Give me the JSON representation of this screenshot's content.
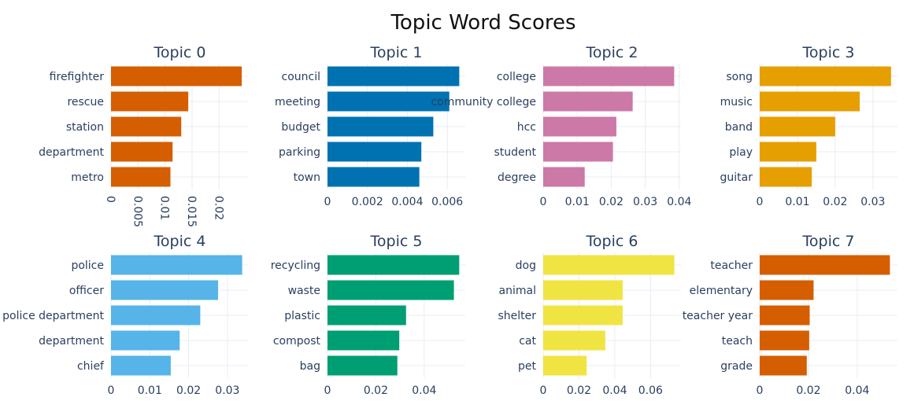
{
  "title": "Topic Word Scores",
  "chart_data": [
    {
      "type": "bar",
      "orientation": "horizontal",
      "title": "Topic 0",
      "color": "#d55e00",
      "categories": [
        "firefighter",
        "rescue",
        "station",
        "department",
        "metro"
      ],
      "values": [
        0.0242,
        0.0143,
        0.013,
        0.0114,
        0.011
      ],
      "xlim": [
        0,
        0.0255
      ],
      "xticks": [
        0,
        0.005,
        0.01,
        0.015,
        0.02
      ],
      "xticklabels": [
        "0",
        "0.005",
        "0.01",
        "0.015",
        "0.02"
      ],
      "xtick_rotation": 90,
      "grid": true,
      "legend": "none"
    },
    {
      "type": "bar",
      "orientation": "horizontal",
      "title": "Topic 1",
      "color": "#0072b2",
      "categories": [
        "council",
        "meeting",
        "budget",
        "parking",
        "town"
      ],
      "values": [
        0.0066,
        0.0061,
        0.0053,
        0.0047,
        0.0046
      ],
      "xlim": [
        0,
        0.0069
      ],
      "xticks": [
        0,
        0.002,
        0.004,
        0.006
      ],
      "xticklabels": [
        "0",
        "0.002",
        "0.004",
        "0.006"
      ],
      "grid": true,
      "legend": "none"
    },
    {
      "type": "bar",
      "orientation": "horizontal",
      "title": "Topic 2",
      "color": "#cc79a7",
      "categories": [
        "college",
        "community college",
        "hcc",
        "student",
        "degree"
      ],
      "values": [
        0.0385,
        0.0263,
        0.0215,
        0.0205,
        0.0122
      ],
      "xlim": [
        0,
        0.0405
      ],
      "xticks": [
        0,
        0.01,
        0.02,
        0.03,
        0.04
      ],
      "xticklabels": [
        "0",
        "0.01",
        "0.02",
        "0.03",
        "0.04"
      ],
      "grid": true,
      "legend": "none"
    },
    {
      "type": "bar",
      "orientation": "horizontal",
      "title": "Topic 3",
      "color": "#e69f00",
      "categories": [
        "song",
        "music",
        "band",
        "play",
        "guitar"
      ],
      "values": [
        0.0348,
        0.0265,
        0.02,
        0.015,
        0.0138
      ],
      "xlim": [
        0,
        0.0365
      ],
      "xticks": [
        0,
        0.01,
        0.02,
        0.03
      ],
      "xticklabels": [
        "0",
        "0.01",
        "0.02",
        "0.03"
      ],
      "grid": true,
      "legend": "none"
    },
    {
      "type": "bar",
      "orientation": "horizontal",
      "title": "Topic 4",
      "color": "#56b4e9",
      "categories": [
        "police",
        "officer",
        "police department",
        "department",
        "chief"
      ],
      "values": [
        0.0338,
        0.0276,
        0.023,
        0.0177,
        0.0154
      ],
      "xlim": [
        0,
        0.0355
      ],
      "xticks": [
        0,
        0.01,
        0.02,
        0.03
      ],
      "xticklabels": [
        "0",
        "0.01",
        "0.02",
        "0.03"
      ],
      "grid": true,
      "legend": "none"
    },
    {
      "type": "bar",
      "orientation": "horizontal",
      "title": "Topic 5",
      "color": "#009e73",
      "categories": [
        "recycling",
        "waste",
        "plastic",
        "compost",
        "bag"
      ],
      "values": [
        0.0545,
        0.0523,
        0.0325,
        0.0297,
        0.0289
      ],
      "xlim": [
        0,
        0.057
      ],
      "xticks": [
        0,
        0.02,
        0.04
      ],
      "xticklabels": [
        "0",
        "0.02",
        "0.04"
      ],
      "grid": true,
      "legend": "none"
    },
    {
      "type": "bar",
      "orientation": "horizontal",
      "title": "Topic 6",
      "color": "#f0e442",
      "categories": [
        "dog",
        "animal",
        "shelter",
        "cat",
        "pet"
      ],
      "values": [
        0.0733,
        0.0444,
        0.0444,
        0.0347,
        0.0243
      ],
      "xlim": [
        0,
        0.077
      ],
      "xticks": [
        0,
        0.02,
        0.04,
        0.06
      ],
      "xticklabels": [
        "0",
        "0.02",
        "0.04",
        "0.06"
      ],
      "grid": true,
      "legend": "none"
    },
    {
      "type": "bar",
      "orientation": "horizontal",
      "title": "Topic 7",
      "color": "#d55e00",
      "categories": [
        "teacher",
        "elementary",
        "teacher year",
        "teach",
        "grade"
      ],
      "values": [
        0.0534,
        0.0221,
        0.0205,
        0.0203,
        0.0193
      ],
      "xlim": [
        0,
        0.0565
      ],
      "xticks": [
        0,
        0.02,
        0.04
      ],
      "xticklabels": [
        "0",
        "0.02",
        "0.04"
      ],
      "grid": true,
      "legend": "none"
    }
  ]
}
